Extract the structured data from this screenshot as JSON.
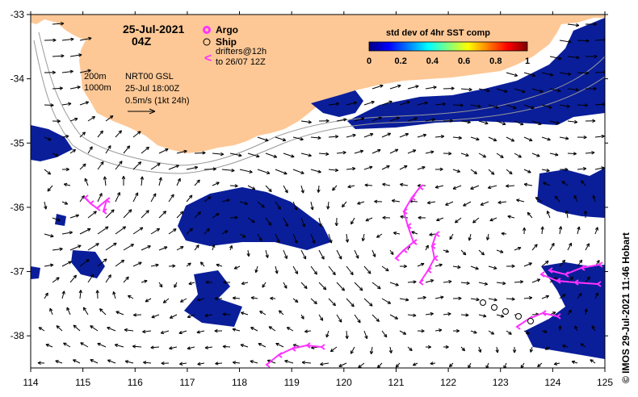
{
  "header": {
    "date": "25-Jul-2021",
    "time": "04Z"
  },
  "legend": {
    "argo_label": "Argo",
    "argo_color": "#ff33ff",
    "ship_label": "Ship",
    "drifters_line1": "drifters@12h",
    "drifters_line2": "to 26/07 12Z",
    "drifter_symbol": "<",
    "drifter_color": "#ff33ff"
  },
  "info": {
    "iso_200": "200m",
    "iso_1000": "1000m",
    "product": "NRT00 GSL",
    "valid": "25-Jul 18:00Z",
    "scale": "0.5m/s (1kt 24h)"
  },
  "colorbar": {
    "title": "std dev of 4hr SST comp",
    "ticks": [
      "0",
      "0.2",
      "0.4",
      "0.6",
      "0.8",
      "1"
    ],
    "range": [
      0,
      1
    ],
    "colors": [
      "#000080",
      "#0000ff",
      "#0080ff",
      "#00ffff",
      "#80ff80",
      "#ffff00",
      "#ff8000",
      "#ff0000",
      "#800000"
    ]
  },
  "axes": {
    "lon_ticks": [
      "114",
      "115",
      "116",
      "117",
      "118",
      "119",
      "120",
      "121",
      "122",
      "123",
      "124",
      "125"
    ],
    "lat_ticks": [
      "-33",
      "-34",
      "-35",
      "-36",
      "-37",
      "-38"
    ],
    "lon_range": [
      114,
      125
    ],
    "lat_range": [
      -38.5,
      -33
    ]
  },
  "colors": {
    "land": "#fdc896",
    "sst_low": "#0a1e9a",
    "arrow": "#000000",
    "isobath": "#999999"
  },
  "credit": "© IMOS 29-Jul-2021 11:46 Hobart"
}
